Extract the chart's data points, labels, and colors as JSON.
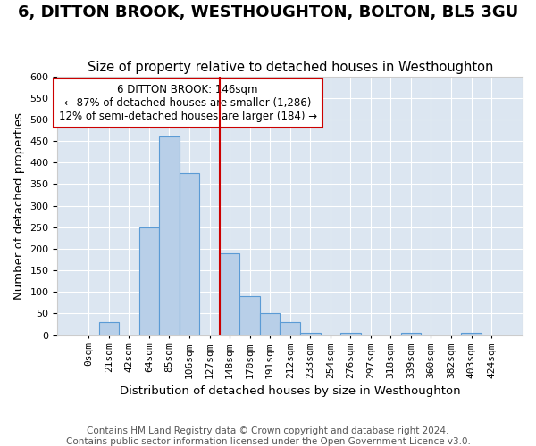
{
  "title": "6, DITTON BROOK, WESTHOUGHTON, BOLTON, BL5 3GU",
  "subtitle": "Size of property relative to detached houses in Westhoughton",
  "xlabel": "Distribution of detached houses by size in Westhoughton",
  "ylabel": "Number of detached properties",
  "footnote1": "Contains HM Land Registry data © Crown copyright and database right 2024.",
  "footnote2": "Contains public sector information licensed under the Open Government Licence v3.0.",
  "bin_labels": [
    "0sqm",
    "21sqm",
    "42sqm",
    "64sqm",
    "85sqm",
    "106sqm",
    "127sqm",
    "148sqm",
    "170sqm",
    "191sqm",
    "212sqm",
    "233sqm",
    "254sqm",
    "276sqm",
    "297sqm",
    "318sqm",
    "339sqm",
    "360sqm",
    "382sqm",
    "403sqm",
    "424sqm"
  ],
  "bar_values": [
    0,
    30,
    0,
    250,
    460,
    375,
    0,
    190,
    90,
    50,
    30,
    5,
    0,
    5,
    0,
    0,
    5,
    0,
    0,
    5,
    0
  ],
  "bar_color": "#b8cfe8",
  "bar_edge_color": "#5b9bd5",
  "property_line_color": "#cc0000",
  "annotation_text": "6 DITTON BROOK: 146sqm\n← 87% of detached houses are smaller (1,286)\n12% of semi-detached houses are larger (184) →",
  "annotation_box_edge_color": "#cc0000",
  "ylim": [
    0,
    600
  ],
  "yticks": [
    0,
    50,
    100,
    150,
    200,
    250,
    300,
    350,
    400,
    450,
    500,
    550,
    600
  ],
  "plot_bg_color": "#dce6f1",
  "title_fontsize": 13,
  "subtitle_fontsize": 10.5,
  "axis_label_fontsize": 9.5,
  "tick_fontsize": 8,
  "footnote_fontsize": 7.5
}
